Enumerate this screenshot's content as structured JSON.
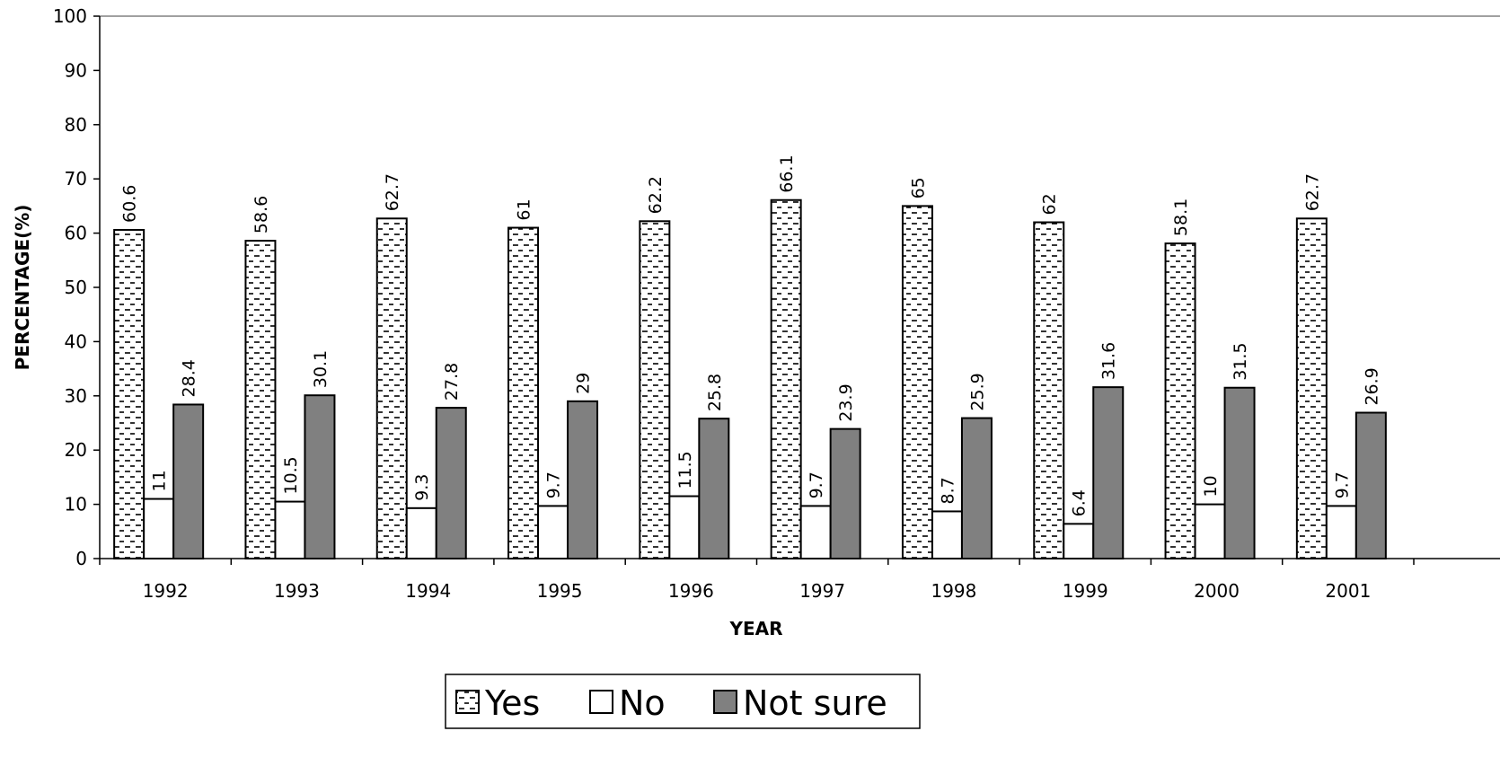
{
  "chart_data": {
    "type": "bar",
    "title": "",
    "xlabel": "YEAR",
    "ylabel": "PERCENTAGE(%)",
    "ylim": [
      0,
      100
    ],
    "yticks": [
      0,
      10,
      20,
      30,
      40,
      50,
      60,
      70,
      80,
      90,
      100
    ],
    "grid": false,
    "legend_position": "bottom-center",
    "categories": [
      "1992",
      "1993",
      "1994",
      "1995",
      "1996",
      "1997",
      "1998",
      "1999",
      "2000",
      "2001"
    ],
    "series": [
      {
        "name": "Yes",
        "values": [
          60.6,
          58.6,
          62.7,
          61,
          62.2,
          66.1,
          65,
          62,
          58.1,
          62.7
        ],
        "fill": "pattern-dashes",
        "color": "#ffffff"
      },
      {
        "name": "No",
        "values": [
          11,
          10.5,
          9.3,
          9.7,
          11.5,
          9.7,
          8.7,
          6.4,
          10,
          9.7
        ],
        "fill": "solid",
        "color": "#ffffff"
      },
      {
        "name": "Not sure",
        "values": [
          28.4,
          30.1,
          27.8,
          29,
          25.8,
          23.9,
          25.9,
          31.6,
          31.5,
          26.9
        ],
        "fill": "solid",
        "color": "#808080"
      }
    ],
    "data_labels": [
      [
        "60.6",
        "58.6",
        "62.7",
        "61",
        "62.2",
        "66.1",
        "65",
        "62",
        "58.1",
        "62.7"
      ],
      [
        "11",
        "10.5",
        "9.3",
        "9.7",
        "11.5",
        "9.7",
        "8.7",
        "6.4",
        "10",
        "9.7"
      ],
      [
        "28.4",
        "30.1",
        "27.8",
        "29",
        "25.8",
        "23.9",
        "25.9",
        "31.6",
        "31.5",
        "26.9"
      ]
    ]
  }
}
